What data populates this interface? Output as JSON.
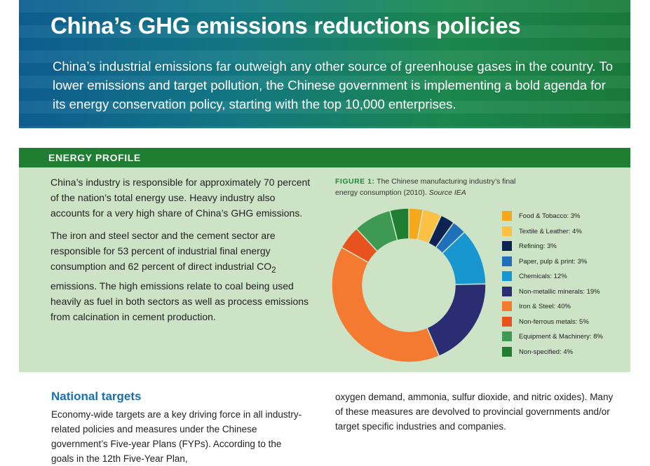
{
  "header": {
    "title": "China’s GHG emissions reductions policies",
    "intro": "China’s industrial emissions far outweigh any other source of greenhouse gases in the country. To lower emissions and target pollution, the Chinese government is implementing a bold agenda for its energy conservation policy, starting with the top 10,000 enterprises."
  },
  "energy_profile": {
    "heading": "ENERGY PROFILE",
    "paragraph1": "China’s industry is responsible for approximately 70 percent of the nation’s total energy use. Heavy industry also accounts for a very high share of China’s GHG emissions.",
    "paragraph2_a": "The iron and steel sector and the cement sector are responsible for 53 percent of industrial final energy consumption and 62 percent of direct industrial CO",
    "paragraph2_sub": "2",
    "paragraph2_b": " emissions. The high emissions relate to coal being used heavily as fuel in both sectors as well as process emissions from calcination in cement production.",
    "figure_label": "FIGURE 1:",
    "figure_caption": " The Chinese manufacturing industry’s final energy consumption (2010). ",
    "figure_source": "Source IEA"
  },
  "chart_data": {
    "type": "pie",
    "categories": [
      "Food & Tobacco",
      "Textile & Leather",
      "Refining",
      "Paper, pulp & print",
      "Chemicals",
      "Non-metallic minerals",
      "Iron & Steel",
      "Non-ferrous metals",
      "Equipment & Machinery",
      "Non-specified"
    ],
    "values": [
      3,
      4,
      3,
      3,
      12,
      19,
      40,
      5,
      8,
      4
    ],
    "legend_labels": [
      "Food & Tobacco: 3%",
      "Textile & Leather: 4%",
      "Refining: 3%",
      "Paper, pulp & print: 3%",
      "Chemicals: 12%",
      "Non-metallic minerals: 19%",
      "Iron & Steel: 40%",
      "Non-ferrous metals: 5%",
      "Equipment & Machinery: 8%",
      "Non-specified: 4%"
    ],
    "colors": [
      "#f5a81c",
      "#fbc044",
      "#0e2352",
      "#1f6fbb",
      "#1796cf",
      "#2a2d72",
      "#f47a32",
      "#e8521e",
      "#3e9a52",
      "#1f7e31"
    ],
    "legend_position": "right",
    "donut": true
  },
  "national_targets": {
    "heading": "National targets",
    "left_text": "Economy-wide targets are a key driving force in all industry-related policies and measures under the Chinese government’s Five-year Plans (FYPs). According to the goals in the 12th Five-Year Plan,",
    "right_text": "oxygen demand, ammonia, sulfur dioxide, and nitric oxides). Many of these measures are devolved to provincial governments and/or target specific industries and companies."
  }
}
